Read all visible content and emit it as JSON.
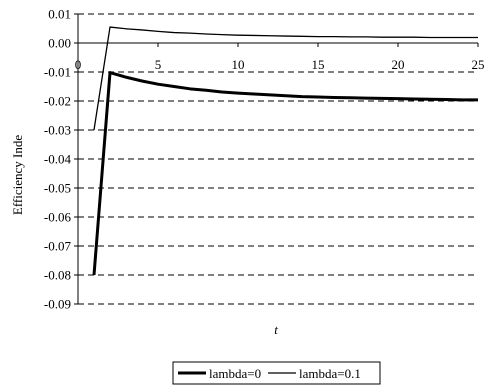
{
  "chart_data": {
    "type": "line",
    "title": "",
    "xlabel": "t",
    "ylabel": "Efficiency Inde",
    "xlim": [
      0,
      25
    ],
    "ylim": [
      -0.09,
      0.01
    ],
    "x_ticks": [
      "0",
      "5",
      "10",
      "15",
      "20",
      "25"
    ],
    "y_ticks": [
      "0.01",
      "0.00",
      "-0.01",
      "-0.02",
      "-0.03",
      "-0.04",
      "-0.05",
      "-0.06",
      "-0.07",
      "-0.08",
      "-0.09"
    ],
    "grid": "horizontal dashed",
    "legend_position": "bottom",
    "series": [
      {
        "name": "lambda=0",
        "line_weight": "thick",
        "x": [
          1,
          2,
          3,
          4,
          5,
          6,
          7,
          8,
          9,
          10,
          11,
          12,
          13,
          14,
          15,
          16,
          17,
          18,
          19,
          20,
          21,
          22,
          23,
          24,
          25
        ],
        "y": [
          -0.08,
          -0.0102,
          -0.0118,
          -0.0131,
          -0.0142,
          -0.015,
          -0.0158,
          -0.0163,
          -0.0169,
          -0.0173,
          -0.0176,
          -0.0179,
          -0.0182,
          -0.0185,
          -0.0186,
          -0.0188,
          -0.0189,
          -0.019,
          -0.0191,
          -0.0192,
          -0.0193,
          -0.0194,
          -0.0195,
          -0.0196,
          -0.0196
        ]
      },
      {
        "name": "lambda=0.1",
        "line_weight": "thin",
        "x": [
          1,
          2,
          3,
          4,
          5,
          6,
          7,
          8,
          9,
          10,
          11,
          12,
          13,
          14,
          15,
          16,
          17,
          18,
          19,
          20,
          21,
          22,
          23,
          24,
          25
        ],
        "y": [
          -0.03,
          0.0055,
          0.0049,
          0.0045,
          0.004,
          0.0036,
          0.0034,
          0.0031,
          0.0029,
          0.0027,
          0.0026,
          0.0025,
          0.0024,
          0.0023,
          0.0022,
          0.0022,
          0.0021,
          0.0021,
          0.002,
          0.002,
          0.002,
          0.0019,
          0.0019,
          0.0019,
          0.0019
        ]
      }
    ]
  }
}
